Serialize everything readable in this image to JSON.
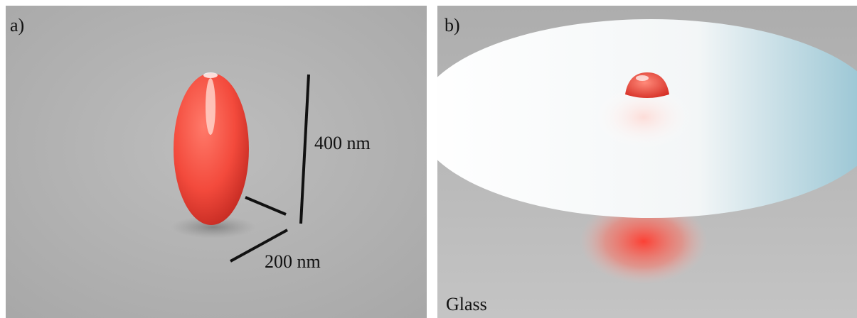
{
  "panels": [
    {
      "label": "a)",
      "annotations": [
        "400 nm",
        "200 nm"
      ]
    },
    {
      "label": "b)",
      "annotations": [
        "Glass"
      ]
    }
  ]
}
